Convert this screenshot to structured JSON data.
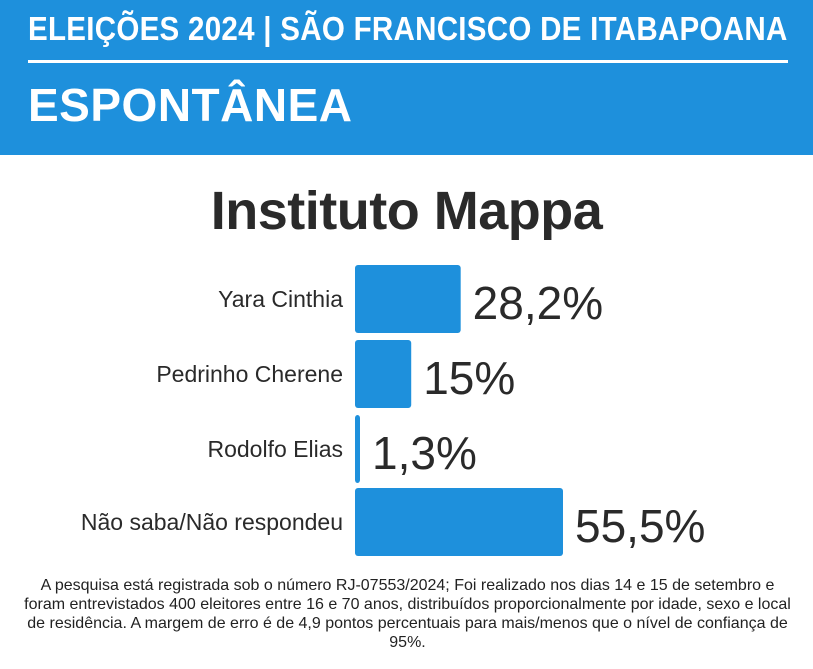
{
  "header": {
    "line1": "ELEIÇÕES 2024 | SÃO FRANCISCO DE ITABAPOANA",
    "line2": "ESPONTÂNEA"
  },
  "colors": {
    "header_bg": "#1e90dc",
    "bar": "#1e90dc",
    "text": "#2a2a2a"
  },
  "chart_data": {
    "type": "bar",
    "orientation": "horizontal",
    "title": "Instituto Mappa",
    "categories": [
      "Yara Cinthia",
      "Pedrinho Cherene",
      "Rodolfo Elias",
      "Não saba/Não respondeu"
    ],
    "values": [
      28.2,
      15,
      1.3,
      55.5
    ],
    "value_labels": [
      "28,2%",
      "15%",
      "1,3%",
      "55,5%"
    ],
    "unit": "%",
    "grid": false,
    "legend": "none"
  },
  "footnote": "A pesquisa está registrada sob o número RJ-07553/2024; Foi realizado nos dias 14 e 15 de setembro e foram entrevistados 400 eleitores entre 16 e 70 anos, distribuídos proporcionalmente por idade, sexo e local de residência. A margem de erro é de 4,9 pontos percentuais para mais/menos que o nível de confiança de 95%."
}
